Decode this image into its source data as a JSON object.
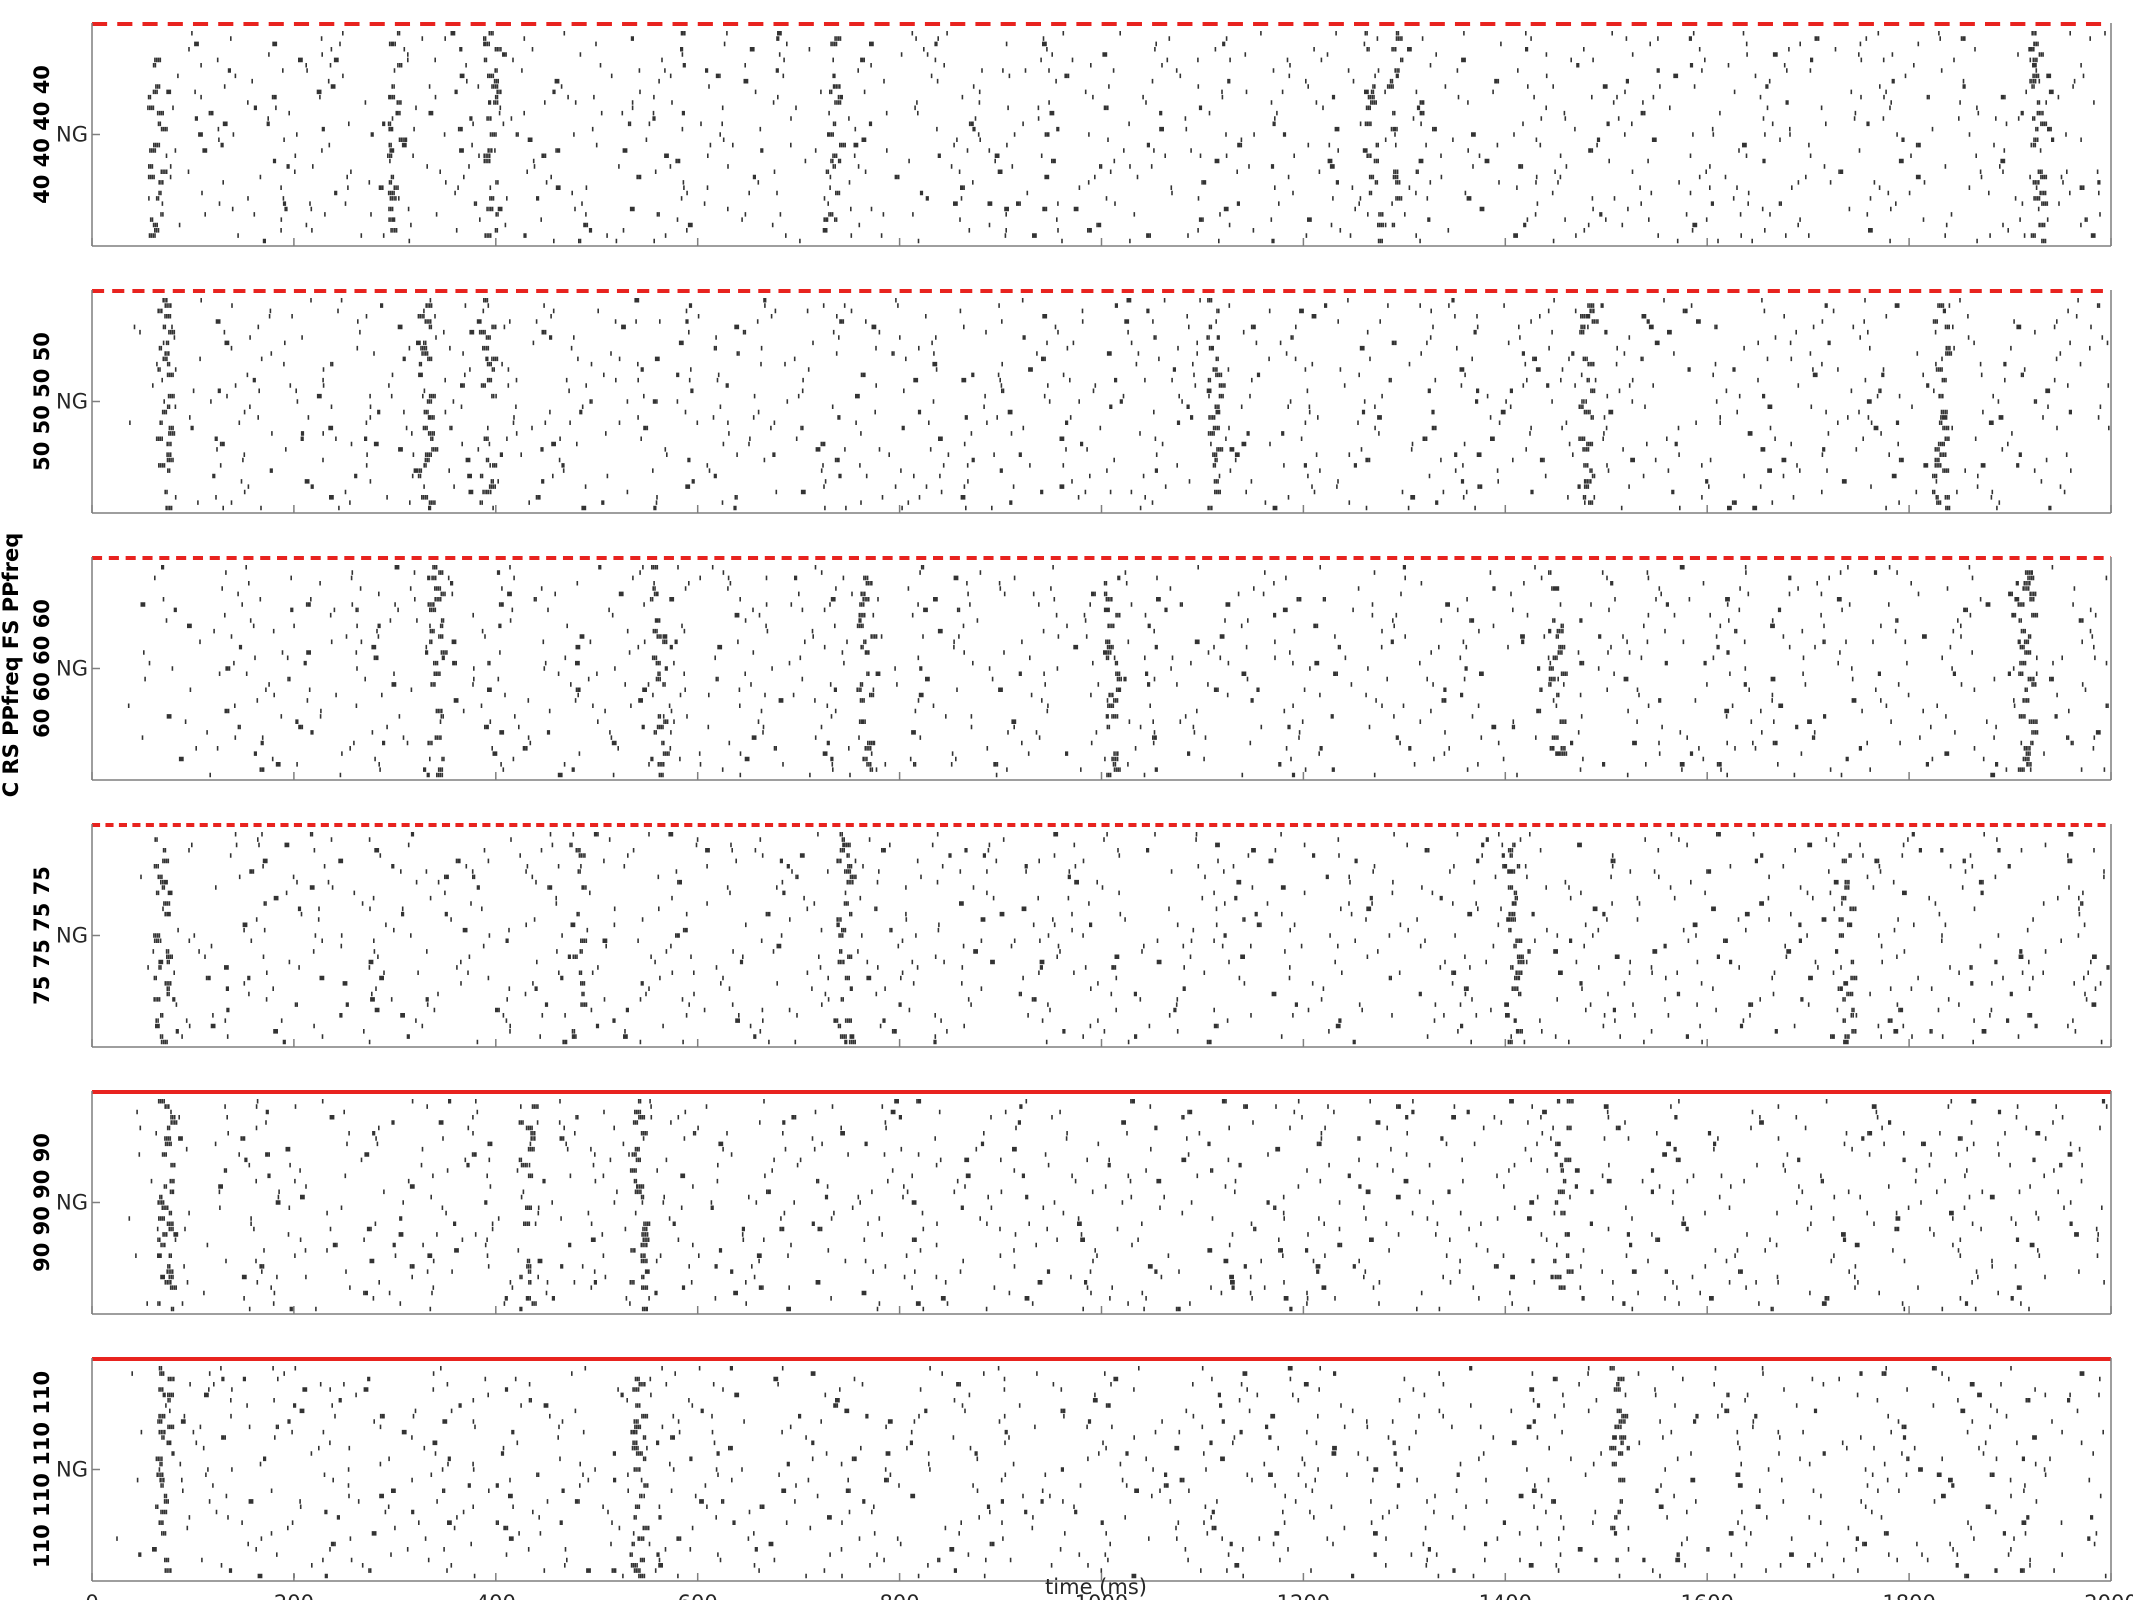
{
  "chart_data": {
    "type": "raster",
    "xlabel": "time (ms)",
    "super_ylabel": "C RS PPfreq FS PPfreq",
    "xlim": [
      0,
      2000
    ],
    "xticks": [
      0,
      200,
      400,
      600,
      800,
      1000,
      1200,
      1400,
      1600,
      1800,
      2000
    ],
    "colors": {
      "spikes": "#333333",
      "stimulus": "#e8231f",
      "axes": "#7f7f7f"
    },
    "panels": [
      {
        "ylabel": "40 40 40 40",
        "ytick_label": "NG",
        "stimulus_freq_hz": 40,
        "stimulus_style": "dashed",
        "burst_times_ms": [
          62,
          300,
          395,
          734,
          1268,
          1290,
          1925
        ]
      },
      {
        "ylabel": "50 50 50 50",
        "ytick_label": "NG",
        "stimulus_freq_hz": 50,
        "stimulus_style": "dashed",
        "burst_times_ms": [
          70,
          330,
          390,
          1110,
          1480,
          1830
        ]
      },
      {
        "ylabel": "60 60 60 60",
        "ytick_label": "NG",
        "stimulus_freq_hz": 60,
        "stimulus_style": "dashed",
        "burst_times_ms": [
          340,
          560,
          765,
          1010,
          1450,
          1915
        ]
      },
      {
        "ylabel": "75 75 75 75",
        "ytick_label": "NG",
        "stimulus_freq_hz": 75,
        "stimulus_style": "dashed",
        "burst_times_ms": [
          68,
          480,
          745,
          1410,
          1737
        ]
      },
      {
        "ylabel": "90 90 90 90",
        "ytick_label": "NG",
        "stimulus_freq_hz": 90,
        "stimulus_style": "solid",
        "burst_times_ms": [
          72,
          430,
          540,
          1455
        ]
      },
      {
        "ylabel": "110 110 110 110",
        "ytick_label": "NG",
        "stimulus_freq_hz": 110,
        "stimulus_style": "solid",
        "burst_times_ms": [
          70,
          540,
          1510
        ]
      }
    ]
  }
}
